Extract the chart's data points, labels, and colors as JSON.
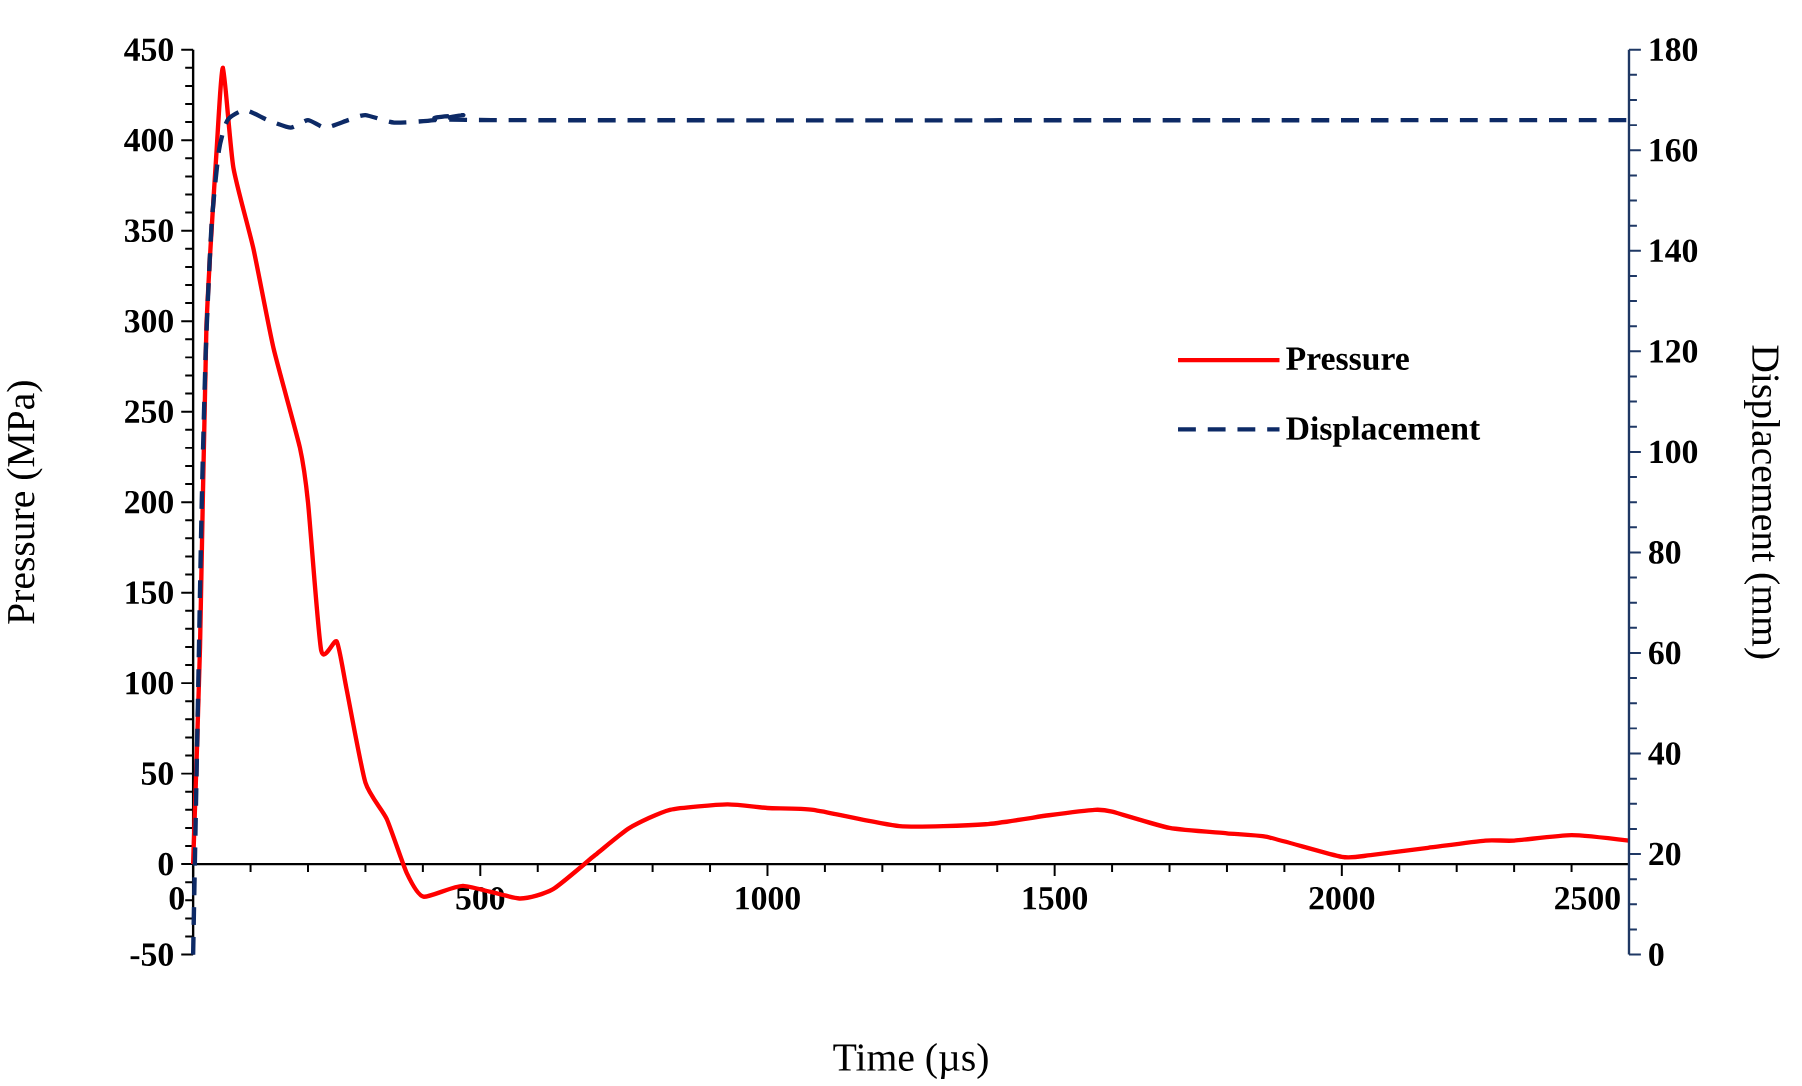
{
  "chart_data": {
    "type": "line",
    "xlabel": "Time (µs)",
    "ylabel": "Pressure (MPa)",
    "y2label": "Displacement (mm)",
    "xlim": [
      0,
      2500
    ],
    "xticks": [
      0,
      500,
      1000,
      1500,
      2000,
      2500
    ],
    "ylim": [
      -50,
      450
    ],
    "yticks": [
      -50,
      0,
      50,
      100,
      150,
      200,
      250,
      300,
      350,
      400,
      450
    ],
    "y2lim": [
      0,
      180
    ],
    "y2ticks": [
      0,
      20,
      40,
      60,
      80,
      100,
      120,
      140,
      160,
      180
    ],
    "legend": "right",
    "series": [
      {
        "name": "Pressure",
        "color": "#ff0000",
        "line_style": "solid",
        "x": [
          0,
          12,
          23,
          41,
          52,
          70,
          105,
          140,
          186,
          200,
          223,
          250,
          267,
          300,
          337,
          372,
          401,
          470,
          568,
          626,
          700,
          760,
          830,
          930,
          1000,
          1080,
          1230,
          1380,
          1490,
          1570,
          1600,
          1700,
          1800,
          1870,
          2000,
          2050,
          2150,
          2250,
          2300,
          2400,
          2500
        ],
        "values": [
          0,
          120,
          295,
          395,
          440,
          385,
          340,
          285,
          230,
          200,
          118,
          123,
          97,
          45,
          25,
          -5,
          -18,
          -12,
          -19,
          -14,
          5,
          20,
          30,
          33,
          31,
          30,
          21,
          22,
          27,
          30,
          29,
          20,
          17,
          15,
          4,
          5,
          9,
          13,
          13,
          16,
          13
        ]
      },
      {
        "name": "Displacement",
        "color": "#0d2a66",
        "line_style": "dashed",
        "axis": "y2",
        "x": [
          0,
          5,
          10,
          15,
          22,
          32,
          45,
          60,
          90,
          130,
          170,
          200,
          230,
          270,
          300,
          350,
          420,
          470,
          520,
          2500
        ],
        "values": [
          0,
          30,
          60,
          90,
          120,
          145,
          160,
          166,
          168,
          166,
          164.5,
          166,
          164.5,
          166,
          167,
          165.5,
          166,
          167,
          166,
          166
        ]
      }
    ]
  }
}
